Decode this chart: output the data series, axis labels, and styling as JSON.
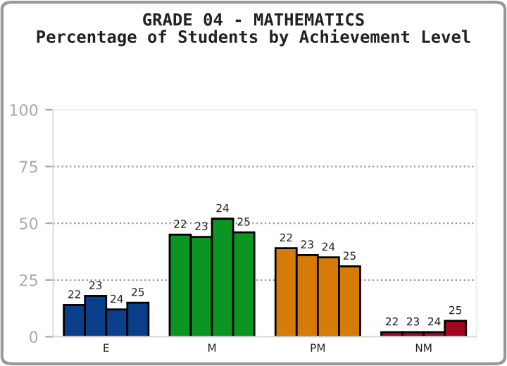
{
  "chart_data": {
    "type": "bar",
    "title": "GRADE 04 - MATHEMATICS\nPercentage of Students by Achievement Level",
    "categories": [
      "E",
      "M",
      "PM",
      "NM"
    ],
    "series": [
      {
        "name": "22",
        "colors": [
          "#0b3f8c",
          "#0b9624",
          "#d67b08",
          "#a3061f"
        ],
        "values": [
          14,
          45,
          39,
          2
        ]
      },
      {
        "name": "23",
        "colors": [
          "#0b3f8c",
          "#0b9624",
          "#d67b08",
          "#a3061f"
        ],
        "values": [
          18,
          44,
          36,
          2
        ]
      },
      {
        "name": "24",
        "colors": [
          "#0b3f8c",
          "#0b9624",
          "#d67b08",
          "#a3061f"
        ],
        "values": [
          12,
          52,
          35,
          2
        ]
      },
      {
        "name": "25",
        "colors": [
          "#0b3f8c",
          "#0b9624",
          "#d67b08",
          "#a3061f"
        ],
        "values": [
          15,
          46,
          31,
          7
        ]
      }
    ],
    "ylim": [
      0,
      100
    ],
    "yticks": [
      0,
      25,
      50,
      75,
      100
    ],
    "grid": "y",
    "legend": false
  }
}
